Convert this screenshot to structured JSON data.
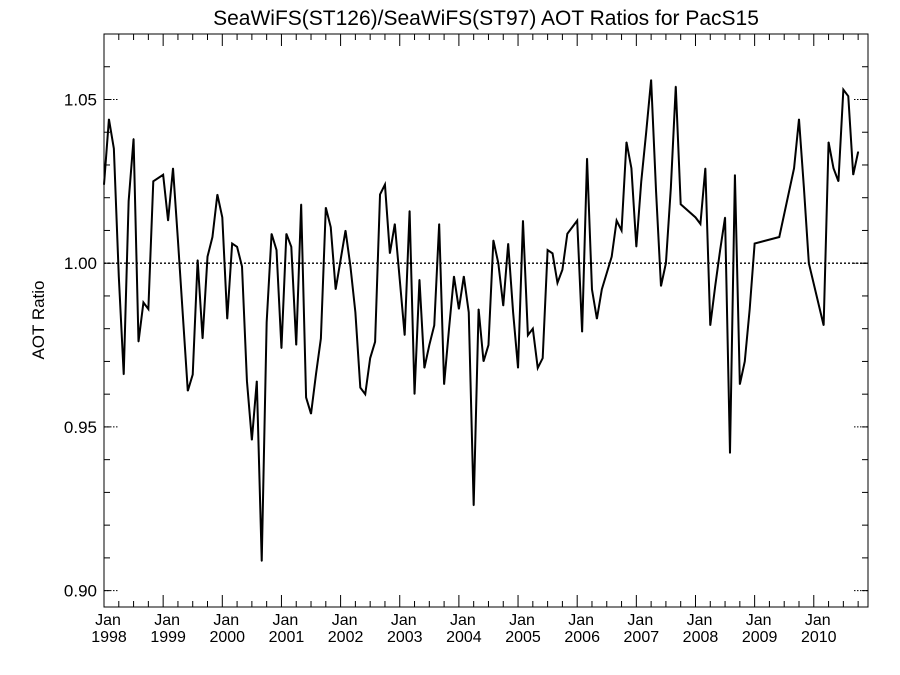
{
  "chart_data": {
    "type": "line",
    "title": "SeaWiFS(ST126)/SeaWiFS(ST97)  AOT Ratios for PacS15",
    "xlabel": "",
    "ylabel": "AOT Ratio",
    "ylim": [
      0.895,
      1.07
    ],
    "yticks": [
      0.9,
      0.95,
      1.0,
      1.05
    ],
    "ytick_labels": [
      "0.90",
      "0.95",
      "1.00",
      "1.05"
    ],
    "reference_line": {
      "y": 1.0,
      "style": "dotted"
    },
    "xlim": [
      "1998-01",
      "2010-12"
    ],
    "xtick_labels": [
      {
        "month": "Jan",
        "year": "1998"
      },
      {
        "month": "Jan",
        "year": "1999"
      },
      {
        "month": "Jan",
        "year": "2000"
      },
      {
        "month": "Jan",
        "year": "2001"
      },
      {
        "month": "Jan",
        "year": "2002"
      },
      {
        "month": "Jan",
        "year": "2003"
      },
      {
        "month": "Jan",
        "year": "2004"
      },
      {
        "month": "Jan",
        "year": "2005"
      },
      {
        "month": "Jan",
        "year": "2006"
      },
      {
        "month": "Jan",
        "year": "2007"
      },
      {
        "month": "Jan",
        "year": "2008"
      },
      {
        "month": "Jan",
        "year": "2009"
      },
      {
        "month": "Jan",
        "year": "2010"
      }
    ],
    "grid": false,
    "series": [
      {
        "line_color": "#000000",
        "points": [
          [
            "1998-01",
            1.024
          ],
          [
            "1998-02",
            1.044
          ],
          [
            "1998-03",
            1.035
          ],
          [
            "1998-04",
            0.996
          ],
          [
            "1998-05",
            0.966
          ],
          [
            "1998-06",
            1.019
          ],
          [
            "1998-07",
            1.038
          ],
          [
            "1998-08",
            0.976
          ],
          [
            "1998-09",
            0.988
          ],
          [
            "1998-10",
            0.986
          ],
          [
            "1998-11",
            1.025
          ],
          [
            "1999-01",
            1.027
          ],
          [
            "1999-02",
            1.013
          ],
          [
            "1999-03",
            1.029
          ],
          [
            "1999-04",
            1.007
          ],
          [
            "1999-05",
            0.984
          ],
          [
            "1999-06",
            0.961
          ],
          [
            "1999-07",
            0.966
          ],
          [
            "1999-08",
            1.001
          ],
          [
            "1999-09",
            0.977
          ],
          [
            "1999-10",
            1.002
          ],
          [
            "1999-11",
            1.008
          ],
          [
            "1999-12",
            1.021
          ],
          [
            "2000-01",
            1.014
          ],
          [
            "2000-02",
            0.983
          ],
          [
            "2000-03",
            1.006
          ],
          [
            "2000-04",
            1.005
          ],
          [
            "2000-05",
            0.999
          ],
          [
            "2000-06",
            0.964
          ],
          [
            "2000-07",
            0.946
          ],
          [
            "2000-08",
            0.964
          ],
          [
            "2000-09",
            0.909
          ],
          [
            "2000-10",
            0.982
          ],
          [
            "2000-11",
            1.009
          ],
          [
            "2000-12",
            1.004
          ],
          [
            "2001-01",
            0.974
          ],
          [
            "2001-02",
            1.009
          ],
          [
            "2001-03",
            1.005
          ],
          [
            "2001-04",
            0.975
          ],
          [
            "2001-05",
            1.018
          ],
          [
            "2001-06",
            0.959
          ],
          [
            "2001-07",
            0.954
          ],
          [
            "2001-08",
            0.966
          ],
          [
            "2001-09",
            0.977
          ],
          [
            "2001-10",
            1.017
          ],
          [
            "2001-11",
            1.011
          ],
          [
            "2001-12",
            0.992
          ],
          [
            "2002-01",
            1.001
          ],
          [
            "2002-02",
            1.01
          ],
          [
            "2002-03",
            0.999
          ],
          [
            "2002-04",
            0.985
          ],
          [
            "2002-05",
            0.962
          ],
          [
            "2002-06",
            0.96
          ],
          [
            "2002-07",
            0.971
          ],
          [
            "2002-08",
            0.976
          ],
          [
            "2002-09",
            1.021
          ],
          [
            "2002-10",
            1.024
          ],
          [
            "2002-11",
            1.003
          ],
          [
            "2002-12",
            1.012
          ],
          [
            "2003-01",
            0.995
          ],
          [
            "2003-02",
            0.978
          ],
          [
            "2003-03",
            1.016
          ],
          [
            "2003-04",
            0.96
          ],
          [
            "2003-05",
            0.995
          ],
          [
            "2003-06",
            0.968
          ],
          [
            "2003-07",
            0.975
          ],
          [
            "2003-08",
            0.981
          ],
          [
            "2003-09",
            1.012
          ],
          [
            "2003-10",
            0.963
          ],
          [
            "2003-11",
            0.98
          ],
          [
            "2003-12",
            0.996
          ],
          [
            "2004-01",
            0.986
          ],
          [
            "2004-02",
            0.996
          ],
          [
            "2004-03",
            0.985
          ],
          [
            "2004-04",
            0.926
          ],
          [
            "2004-05",
            0.986
          ],
          [
            "2004-06",
            0.97
          ],
          [
            "2004-07",
            0.975
          ],
          [
            "2004-08",
            1.007
          ],
          [
            "2004-09",
            1.0
          ],
          [
            "2004-10",
            0.987
          ],
          [
            "2004-11",
            1.006
          ],
          [
            "2004-12",
            0.985
          ],
          [
            "2005-01",
            0.968
          ],
          [
            "2005-02",
            1.013
          ],
          [
            "2005-03",
            0.978
          ],
          [
            "2005-04",
            0.98
          ],
          [
            "2005-05",
            0.968
          ],
          [
            "2005-06",
            0.971
          ],
          [
            "2005-07",
            1.004
          ],
          [
            "2005-08",
            1.003
          ],
          [
            "2005-09",
            0.994
          ],
          [
            "2005-10",
            0.998
          ],
          [
            "2005-11",
            1.009
          ],
          [
            "2006-01",
            1.013
          ],
          [
            "2006-02",
            0.979
          ],
          [
            "2006-03",
            1.032
          ],
          [
            "2006-04",
            0.992
          ],
          [
            "2006-05",
            0.983
          ],
          [
            "2006-06",
            0.992
          ],
          [
            "2006-07",
            0.997
          ],
          [
            "2006-08",
            1.002
          ],
          [
            "2006-09",
            1.013
          ],
          [
            "2006-10",
            1.01
          ],
          [
            "2006-11",
            1.037
          ],
          [
            "2006-12",
            1.029
          ],
          [
            "2007-01",
            1.005
          ],
          [
            "2007-02",
            1.025
          ],
          [
            "2007-03",
            1.04
          ],
          [
            "2007-04",
            1.056
          ],
          [
            "2007-05",
            1.022
          ],
          [
            "2007-06",
            0.993
          ],
          [
            "2007-07",
            1.0
          ],
          [
            "2007-08",
            1.023
          ],
          [
            "2007-09",
            1.054
          ],
          [
            "2007-10",
            1.018
          ],
          [
            "2008-01",
            1.014
          ],
          [
            "2008-02",
            1.012
          ],
          [
            "2008-03",
            1.029
          ],
          [
            "2008-04",
            0.981
          ],
          [
            "2008-05",
            0.993
          ],
          [
            "2008-06",
            1.004
          ],
          [
            "2008-07",
            1.014
          ],
          [
            "2008-08",
            0.942
          ],
          [
            "2008-09",
            1.027
          ],
          [
            "2008-10",
            0.963
          ],
          [
            "2008-11",
            0.97
          ],
          [
            "2008-12",
            0.986
          ],
          [
            "2009-01",
            1.006
          ],
          [
            "2009-06",
            1.008
          ],
          [
            "2009-09",
            1.029
          ],
          [
            "2009-10",
            1.044
          ],
          [
            "2009-11",
            1.023
          ],
          [
            "2009-12",
            1.0
          ],
          [
            "2010-03",
            0.981
          ],
          [
            "2010-04",
            1.037
          ],
          [
            "2010-05",
            1.029
          ],
          [
            "2010-06",
            1.025
          ],
          [
            "2010-07",
            1.053
          ],
          [
            "2010-08",
            1.051
          ],
          [
            "2010-09",
            1.027
          ],
          [
            "2010-10",
            1.034
          ]
        ]
      }
    ]
  }
}
